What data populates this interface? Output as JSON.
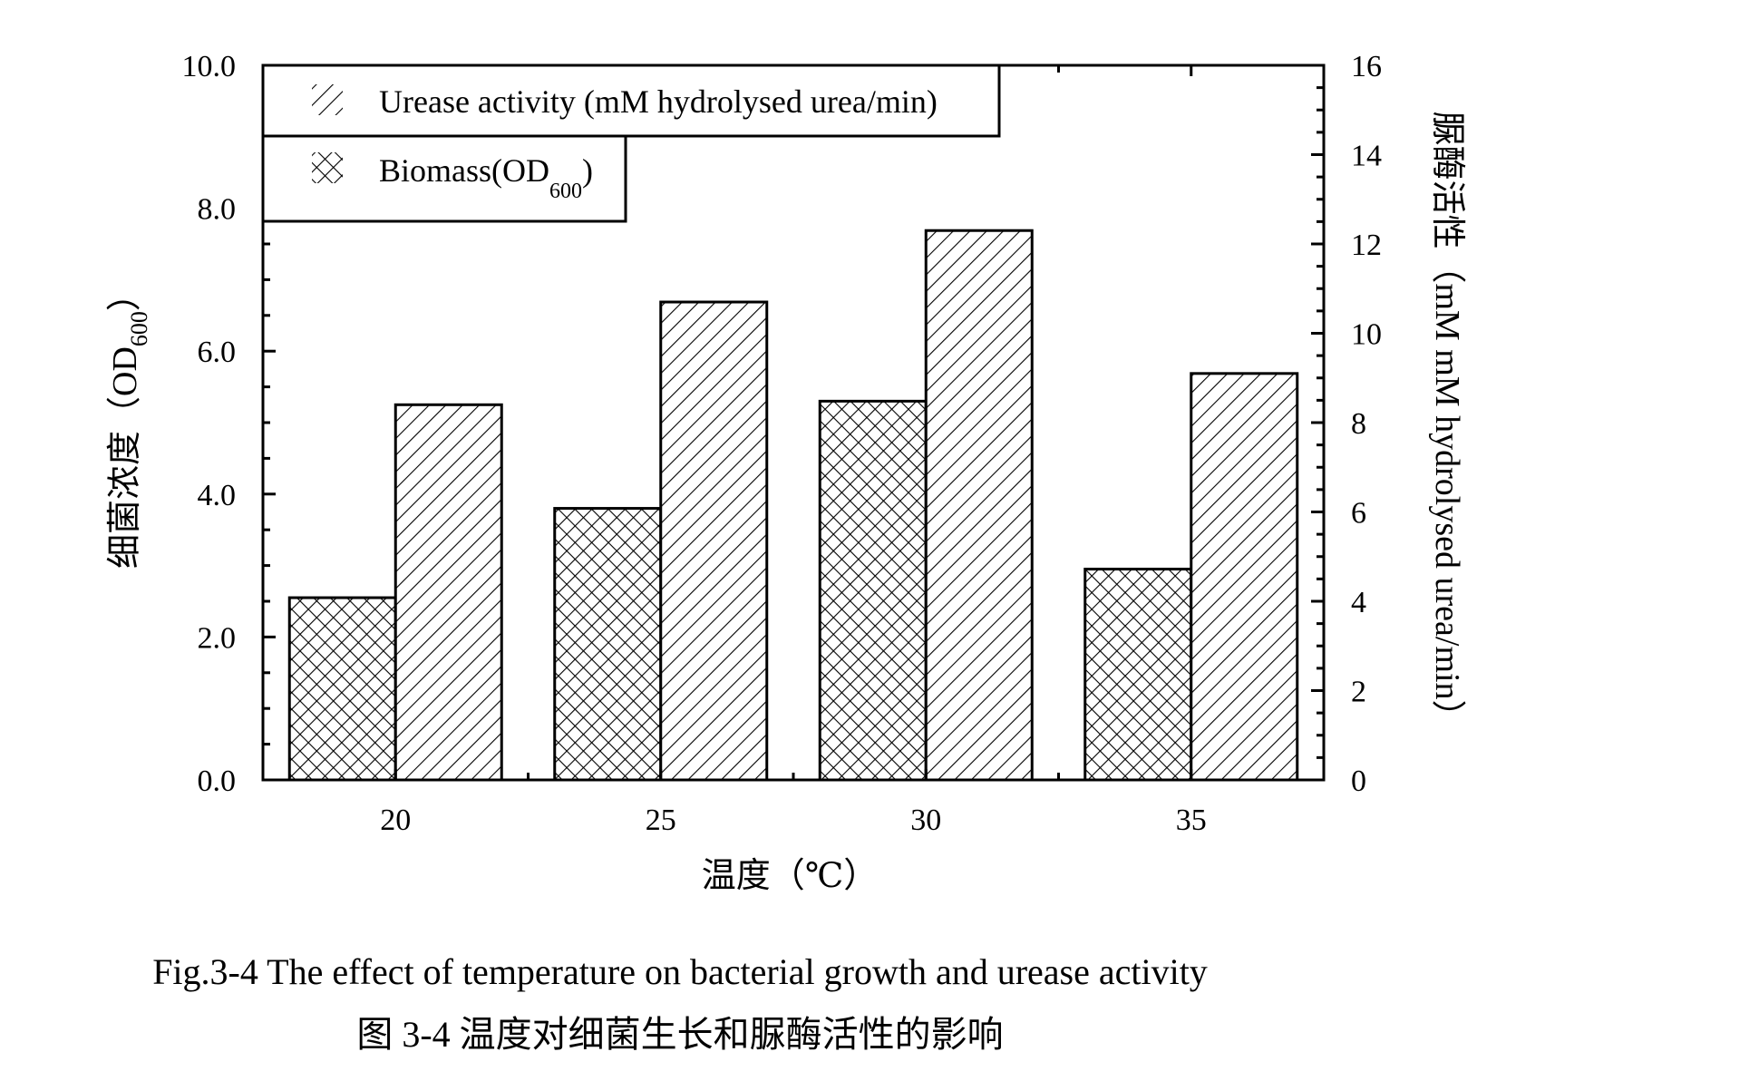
{
  "chart_data": {
    "type": "bar",
    "categories": [
      "20",
      "25",
      "30",
      "35"
    ],
    "series": [
      {
        "name": "Biomass(OD600)",
        "axis": "left",
        "pattern": "crosshatch",
        "values": [
          2.55,
          3.8,
          5.3,
          2.95
        ]
      },
      {
        "name": "Urease activity (mM hydrolysed urea/min)",
        "axis": "right",
        "pattern": "diagonal",
        "values": [
          8.4,
          10.7,
          12.3,
          9.1
        ]
      }
    ],
    "xlabel": "温度（℃）",
    "ylabel_left": {
      "main": "细菌浓度（OD",
      "sub": "600",
      "end": "）"
    },
    "ylabel_right": "脲酶活性（mM mM hydrolysed urea/min）",
    "ylim_left": [
      0,
      10
    ],
    "ylim_right": [
      0,
      16
    ],
    "yticks_left": [
      "0.0",
      "2.0",
      "4.0",
      "6.0",
      "8.0",
      "10.0"
    ],
    "yticks_right": [
      "0",
      "2",
      "4",
      "6",
      "8",
      "10",
      "12",
      "14",
      "16"
    ],
    "legend": {
      "placement": "top-left",
      "items": [
        {
          "pattern": "diagonal",
          "main": "Urease activity (mM hydrolysed urea/min)",
          "sub": "",
          "end": ""
        },
        {
          "pattern": "crosshatch",
          "main": "Biomass(OD",
          "sub": "600",
          "end": ")"
        }
      ]
    },
    "grid": false
  },
  "caption": {
    "english": "Fig.3-4 The effect of temperature on bacterial growth and urease activity",
    "chinese": "图 3-4 温度对细菌生长和脲酶活性的影响"
  }
}
